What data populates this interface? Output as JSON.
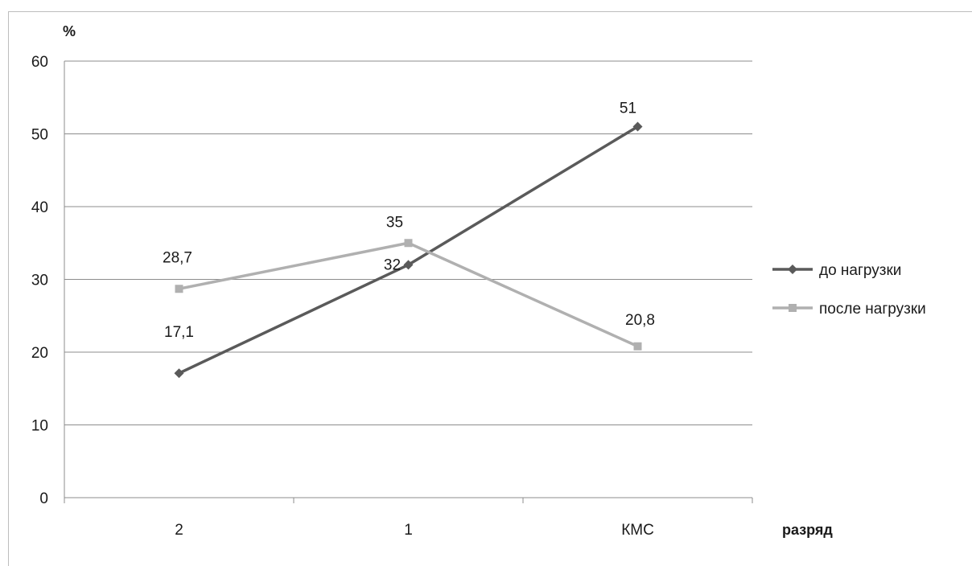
{
  "chart_data": {
    "type": "line",
    "categories": [
      "2",
      "1",
      "КМС"
    ],
    "series": [
      {
        "name": "до нагрузки",
        "values": [
          17.1,
          32,
          51
        ],
        "labels": [
          "17,1",
          "32",
          "51"
        ],
        "color": "#5a5a5a",
        "marker": "diamond"
      },
      {
        "name": "после нагрузки",
        "values": [
          28.7,
          35,
          20.8
        ],
        "labels": [
          "28,7",
          "35",
          "20,8"
        ],
        "color": "#b0b0b0",
        "marker": "square"
      }
    ],
    "yticks": [
      "0",
      "10",
      "20",
      "30",
      "40",
      "50",
      "60"
    ],
    "ylim": [
      0,
      60
    ],
    "ylabel": "%",
    "xlabel": "разряд",
    "grid": true,
    "legend_position": "right"
  }
}
